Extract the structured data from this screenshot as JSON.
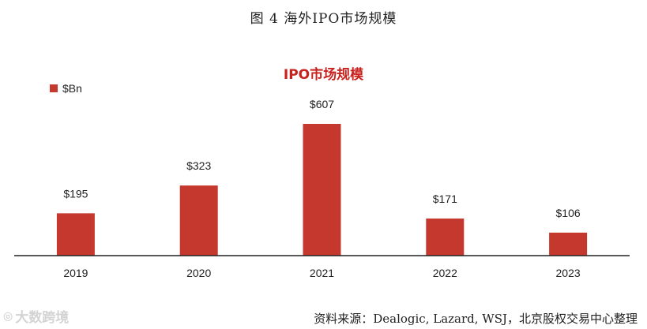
{
  "figure": {
    "caption": "图 4 海外IPO市场规模",
    "source": "资料来源：Dealogic, Lazard, WSJ，北京股权交易中心整理",
    "watermark": "大数跨境"
  },
  "colors": {
    "bar": "#c4382d",
    "title": "#c9221e",
    "axis": "#222222"
  },
  "chart_data": {
    "type": "bar",
    "title": "IPO市场规模",
    "categories": [
      "2019",
      "2020",
      "2021",
      "2022",
      "2023"
    ],
    "series": [
      {
        "name": "$Bn",
        "values": [
          195,
          323,
          607,
          171,
          106
        ],
        "labels": [
          "$195",
          "$323",
          "$607",
          "$171",
          "$106"
        ]
      }
    ],
    "xlabel": "",
    "ylabel": "",
    "ylim": [
      0,
      607
    ],
    "grid": false,
    "legend": "top-left"
  }
}
